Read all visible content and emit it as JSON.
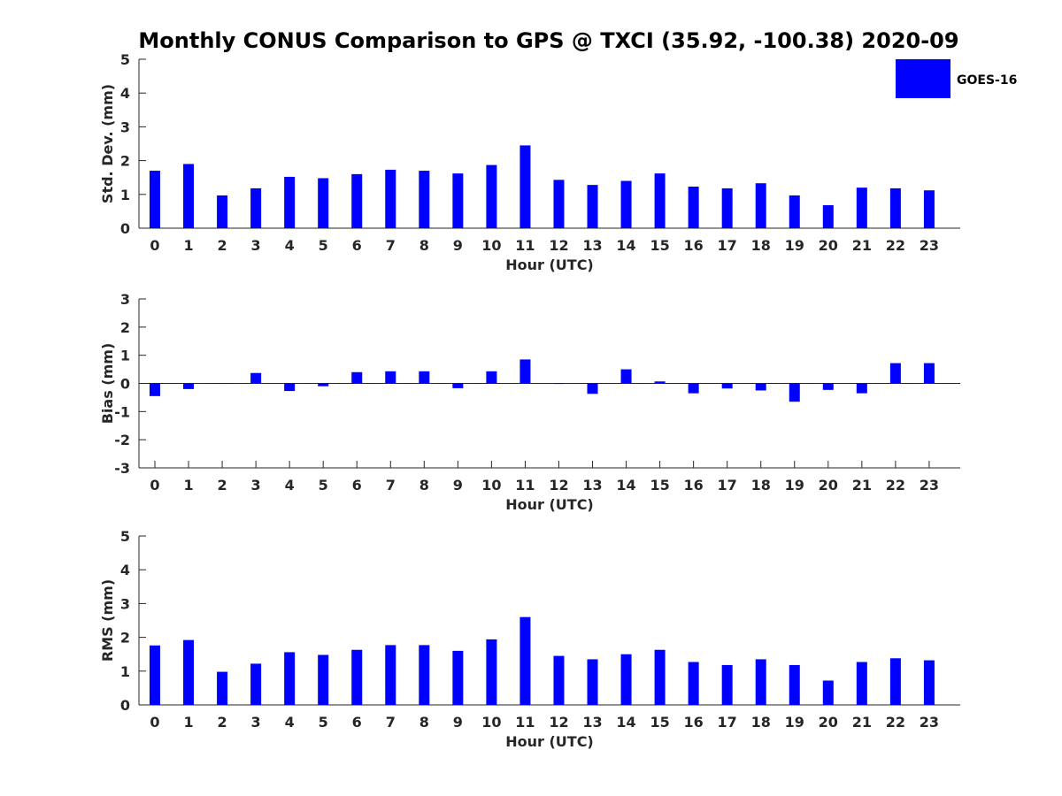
{
  "title": "Monthly CONUS Comparison to GPS @ TXCI (35.92, -100.38) 2020-09",
  "legend": {
    "label": "GOES-16",
    "color": "#0000ff"
  },
  "chart_data": [
    {
      "type": "bar",
      "categories": [
        "0",
        "1",
        "2",
        "3",
        "4",
        "5",
        "6",
        "7",
        "8",
        "9",
        "10",
        "11",
        "12",
        "13",
        "14",
        "15",
        "16",
        "17",
        "18",
        "19",
        "20",
        "21",
        "22",
        "23"
      ],
      "series": [
        {
          "name": "GOES-16",
          "values": [
            1.7,
            1.9,
            0.97,
            1.18,
            1.52,
            1.48,
            1.6,
            1.73,
            1.7,
            1.62,
            1.87,
            2.45,
            1.43,
            1.28,
            1.4,
            1.62,
            1.23,
            1.18,
            1.33,
            0.97,
            0.68,
            1.2,
            1.18,
            1.12
          ]
        }
      ],
      "xlabel": "Hour (UTC)",
      "ylabel": "Std. Dev. (mm)",
      "ylim": [
        0,
        5
      ],
      "yticks": [
        "0",
        "1",
        "2",
        "3",
        "4",
        "5"
      ],
      "grid": false,
      "legend_position": "top-right"
    },
    {
      "type": "bar",
      "categories": [
        "0",
        "1",
        "2",
        "3",
        "4",
        "5",
        "6",
        "7",
        "8",
        "9",
        "10",
        "11",
        "12",
        "13",
        "14",
        "15",
        "16",
        "17",
        "18",
        "19",
        "20",
        "21",
        "22",
        "23"
      ],
      "series": [
        {
          "name": "GOES-16",
          "values": [
            -0.45,
            -0.2,
            0.0,
            0.37,
            -0.27,
            -0.1,
            0.4,
            0.43,
            0.43,
            -0.17,
            0.43,
            0.85,
            -0.02,
            -0.37,
            0.5,
            0.07,
            -0.35,
            -0.18,
            -0.25,
            -0.65,
            -0.23,
            -0.35,
            0.72,
            0.72
          ]
        }
      ],
      "xlabel": "Hour (UTC)",
      "ylabel": "Bias (mm)",
      "ylim": [
        -3,
        3
      ],
      "yticks": [
        "-3",
        "-2",
        "-1",
        "0",
        "1",
        "2",
        "3"
      ],
      "grid": false
    },
    {
      "type": "bar",
      "categories": [
        "0",
        "1",
        "2",
        "3",
        "4",
        "5",
        "6",
        "7",
        "8",
        "9",
        "10",
        "11",
        "12",
        "13",
        "14",
        "15",
        "16",
        "17",
        "18",
        "19",
        "20",
        "21",
        "22",
        "23"
      ],
      "series": [
        {
          "name": "GOES-16",
          "values": [
            1.76,
            1.92,
            0.98,
            1.22,
            1.56,
            1.48,
            1.63,
            1.77,
            1.77,
            1.6,
            1.94,
            2.6,
            1.45,
            1.35,
            1.5,
            1.63,
            1.27,
            1.18,
            1.35,
            1.18,
            0.72,
            1.27,
            1.38,
            1.32
          ]
        }
      ],
      "xlabel": "Hour (UTC)",
      "ylabel": "RMS (mm)",
      "ylim": [
        0,
        5
      ],
      "yticks": [
        "0",
        "1",
        "2",
        "3",
        "4",
        "5"
      ],
      "grid": false
    }
  ]
}
